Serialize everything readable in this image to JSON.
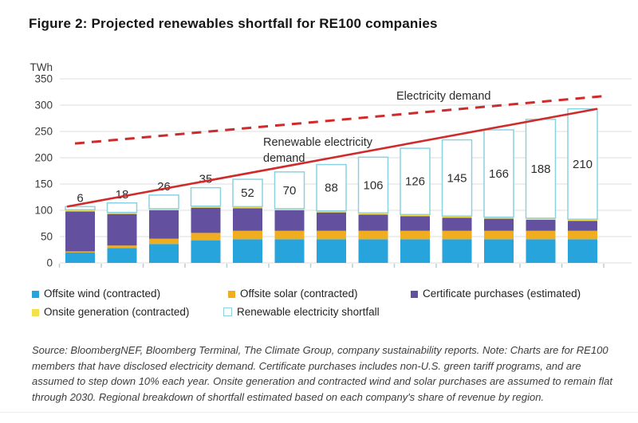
{
  "figure": {
    "title": "Figure 2: Projected renewables shortfall for RE100 companies",
    "source_note": "Source: BloombergNEF, Bloomberg Terminal, The Climate Group, company sustainability reports. Note: Charts are for RE100 members that have disclosed electricity demand. Certificate purchases includes non-U.S. green tariff programs, and are assumed to step down 10% each year. Onsite generation and contracted wind and solar purchases are assumed to remain flat through 2030. Regional breakdown of shortfall estimated based on each company's share of revenue by region."
  },
  "chart_data": {
    "type": "bar",
    "stacked": true,
    "title": "Figure 2: Projected renewables shortfall for RE100 companies",
    "ylabel": "TWh",
    "ylim": [
      0,
      350
    ],
    "yticks": [
      0,
      50,
      100,
      150,
      200,
      250,
      300,
      350
    ],
    "grid": true,
    "legend_position": "bottom",
    "n_bars": 13,
    "x_tick_labels": [],
    "series": [
      {
        "name": "Offsite wind (contracted)",
        "color": "#28a4dd",
        "values": [
          20,
          28,
          36,
          43,
          45,
          45,
          45,
          45,
          45,
          45,
          45,
          45,
          45
        ]
      },
      {
        "name": "Offsite solar (contracted)",
        "color": "#f0ad1f",
        "values": [
          2,
          5,
          10,
          14,
          16,
          16,
          16,
          16,
          16,
          16,
          16,
          16,
          16
        ]
      },
      {
        "name": "Certificate purchases (estimated)",
        "color": "#63519f",
        "values": [
          76,
          60,
          54,
          48,
          43,
          39,
          35,
          31,
          28,
          25,
          23,
          21,
          19
        ]
      },
      {
        "name": "Onsite generation (contracted)",
        "color": "#f2e14c",
        "values": [
          3,
          3,
          3,
          3,
          3,
          3,
          3,
          3,
          3,
          3,
          3,
          3,
          3
        ]
      },
      {
        "name": "Renewable electricity shortfall",
        "color": "#ffffff",
        "border": "#8ad2e2",
        "values": [
          6,
          18,
          26,
          35,
          52,
          70,
          88,
          106,
          126,
          145,
          166,
          188,
          210
        ]
      }
    ],
    "bar_labels": [
      "6",
      "18",
      "26",
      "35",
      "52",
      "70",
      "88",
      "106",
      "126",
      "145",
      "166",
      "188",
      "210"
    ],
    "lines": [
      {
        "name": "Electricity demand",
        "style": "dashed",
        "color": "#d02b2b",
        "start_value": 227,
        "end_value": 318
      },
      {
        "name": "Renewable electricity demand",
        "style": "solid",
        "color": "#d02b2b",
        "start_value": 107,
        "end_value": 293
      }
    ],
    "annotation_colors": {
      "gridline": "#dcdcdc",
      "axis_tick": "#b5cdd6",
      "value_label": "#2d2d2d"
    }
  }
}
